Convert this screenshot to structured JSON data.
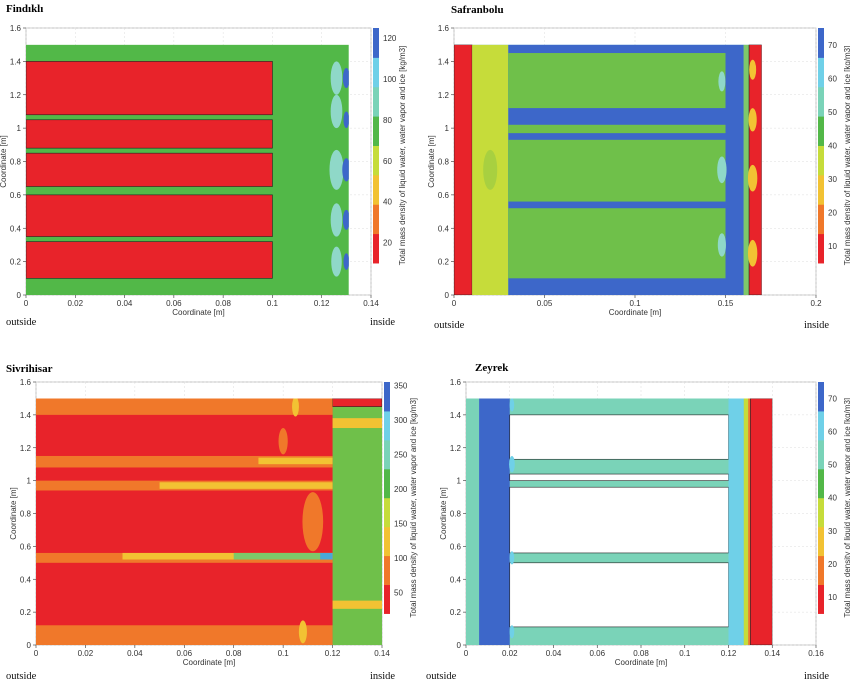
{
  "chart_data": [
    {
      "type": "heatmap",
      "title": "Findıklı",
      "xlabel": "Coordinate [m]",
      "ylabel": "Coordinate [m]",
      "xlim": [
        0,
        0.14
      ],
      "ylim": [
        0,
        1.6
      ],
      "xticks": [
        "0",
        "0.02",
        "0.04",
        "0.06",
        "0.08",
        "0.1",
        "0.12",
        "0.14"
      ],
      "yticks": [
        "0",
        "0.2",
        "0.4",
        "0.6",
        "0.8",
        "1",
        "1.2",
        "1.4",
        "1.6"
      ],
      "colorbar_label": "Total mass density of liquid water, water vapor and ice [kg/m3]",
      "colorbar_range": [
        10,
        125
      ],
      "colorbar_ticks": [
        "20",
        "40",
        "60",
        "80",
        "100",
        "120"
      ],
      "side_left": "outside",
      "side_right": "inside",
      "background_color": "#52b848",
      "regions": [
        {
          "x": [
            0,
            0.1
          ],
          "y": [
            0.1,
            0.32
          ],
          "color": "#e8232a"
        },
        {
          "x": [
            0,
            0.1
          ],
          "y": [
            0.35,
            0.6
          ],
          "color": "#e8232a"
        },
        {
          "x": [
            0,
            0.1
          ],
          "y": [
            0.65,
            0.85
          ],
          "color": "#e8232a"
        },
        {
          "x": [
            0,
            0.1
          ],
          "y": [
            0.88,
            1.05
          ],
          "color": "#e8232a"
        },
        {
          "x": [
            0,
            0.1
          ],
          "y": [
            1.08,
            1.4
          ],
          "color": "#e8232a"
        }
      ],
      "blobs": [
        {
          "x": 0.126,
          "y": 0.2,
          "r": 0.09,
          "color": "#8fd8c8"
        },
        {
          "x": 0.126,
          "y": 0.45,
          "r": 0.1,
          "color": "#8fd8c8"
        },
        {
          "x": 0.126,
          "y": 0.75,
          "r": 0.12,
          "color": "#8fd8c8"
        },
        {
          "x": 0.126,
          "y": 1.1,
          "r": 0.1,
          "color": "#8fd8c8"
        },
        {
          "x": 0.126,
          "y": 1.3,
          "r": 0.1,
          "color": "#8fd8c8"
        },
        {
          "x": 0.13,
          "y": 0.2,
          "r": 0.05,
          "color": "#3d67c9"
        },
        {
          "x": 0.13,
          "y": 0.45,
          "r": 0.06,
          "color": "#3d67c9"
        },
        {
          "x": 0.13,
          "y": 0.75,
          "r": 0.07,
          "color": "#3d67c9"
        },
        {
          "x": 0.13,
          "y": 1.05,
          "r": 0.05,
          "color": "#3d67c9"
        },
        {
          "x": 0.13,
          "y": 1.3,
          "r": 0.06,
          "color": "#3d67c9"
        }
      ],
      "extent": {
        "x": [
          0,
          0.131
        ],
        "y": [
          0,
          1.5
        ]
      }
    },
    {
      "type": "heatmap",
      "title": "Safranbolu",
      "xlabel": "Coordinate [m]",
      "ylabel": "Coordinate [m]",
      "xlim": [
        0,
        0.2
      ],
      "ylim": [
        0,
        1.6
      ],
      "xticks": [
        "0",
        "0.05",
        "0.1",
        "0.15",
        "0.2"
      ],
      "yticks": [
        "0",
        "0.2",
        "0.4",
        "0.6",
        "0.8",
        "1",
        "1.2",
        "1.4",
        "1.6"
      ],
      "colorbar_label": "Total mass density of liquid water, water vapor and ice [kg/m3]",
      "colorbar_range": [
        5,
        75
      ],
      "colorbar_ticks": [
        "10",
        "20",
        "30",
        "40",
        "50",
        "60",
        "70"
      ],
      "side_left": "outside",
      "side_right": "inside",
      "background_color": "#4aa8d8",
      "regions": [
        {
          "x": [
            0,
            0.01
          ],
          "y": [
            0,
            1.5
          ],
          "color": "#e8232a"
        },
        {
          "x": [
            0.01,
            0.03
          ],
          "y": [
            0,
            1.5
          ],
          "color": "#c6dc3a"
        },
        {
          "x": [
            0.03,
            0.16
          ],
          "y": [
            0,
            1.5
          ],
          "color": "#3d67c9"
        },
        {
          "x": [
            0.03,
            0.15
          ],
          "y": [
            0.1,
            0.52
          ],
          "color": "#6fc04a"
        },
        {
          "x": [
            0.03,
            0.15
          ],
          "y": [
            0.56,
            0.93
          ],
          "color": "#6fc04a"
        },
        {
          "x": [
            0.03,
            0.15
          ],
          "y": [
            0.97,
            1.02
          ],
          "color": "#6fc04a"
        },
        {
          "x": [
            0.03,
            0.15
          ],
          "y": [
            1.12,
            1.45
          ],
          "color": "#6fc04a"
        },
        {
          "x": [
            0.16,
            0.163
          ],
          "y": [
            0,
            1.5
          ],
          "color": "#7ec86a"
        },
        {
          "x": [
            0.163,
            0.17
          ],
          "y": [
            0,
            1.5
          ],
          "color": "#e8232a"
        }
      ],
      "blobs": [
        {
          "x": 0.165,
          "y": 1.35,
          "r": 0.06,
          "color": "#f2c233"
        },
        {
          "x": 0.165,
          "y": 1.05,
          "r": 0.07,
          "color": "#f2c233"
        },
        {
          "x": 0.165,
          "y": 0.7,
          "r": 0.08,
          "color": "#f2c233"
        },
        {
          "x": 0.165,
          "y": 0.25,
          "r": 0.08,
          "color": "#f2c233"
        },
        {
          "x": 0.02,
          "y": 0.75,
          "r": 0.12,
          "color": "#a8d040"
        },
        {
          "x": 0.148,
          "y": 0.3,
          "r": 0.07,
          "color": "#8fd8c8"
        },
        {
          "x": 0.148,
          "y": 0.75,
          "r": 0.08,
          "color": "#8fd8c8"
        },
        {
          "x": 0.148,
          "y": 1.28,
          "r": 0.06,
          "color": "#8fd8c8"
        }
      ],
      "extent": {
        "x": [
          0,
          0.17
        ],
        "y": [
          0,
          1.5
        ]
      }
    },
    {
      "type": "heatmap",
      "title": "Sivrihisar",
      "xlabel": "Coordinate [m]",
      "ylabel": "Coordinate [m]",
      "xlim": [
        0,
        0.14
      ],
      "ylim": [
        0,
        1.6
      ],
      "xticks": [
        "0",
        "0.02",
        "0.04",
        "0.06",
        "0.08",
        "0.1",
        "0.12",
        "0.14"
      ],
      "yticks": [
        "0",
        "0.2",
        "0.4",
        "0.6",
        "0.8",
        "1",
        "1.2",
        "1.4",
        "1.6"
      ],
      "colorbar_label": "Total mass density of liquid water, water vapor and ice [kg/m3]",
      "colorbar_range": [
        20,
        355
      ],
      "colorbar_ticks": [
        "50",
        "100",
        "150",
        "200",
        "250",
        "300",
        "350"
      ],
      "side_left": "outside",
      "side_right": "inside",
      "background_color": "#e8232a",
      "regions": [
        {
          "x": [
            0,
            0.12
          ],
          "y": [
            0,
            0.12
          ],
          "color": "#f0782a"
        },
        {
          "x": [
            0.12,
            0.14
          ],
          "y": [
            0,
            1.5
          ],
          "color": "#6fc04a"
        },
        {
          "x": [
            0.12,
            0.14
          ],
          "y": [
            0.22,
            0.27
          ],
          "color": "#f2c233"
        },
        {
          "x": [
            0.12,
            0.14
          ],
          "y": [
            1.32,
            1.38
          ],
          "color": "#f2c233"
        },
        {
          "x": [
            0.12,
            0.14
          ],
          "y": [
            1.45,
            1.5
          ],
          "color": "#e8232a"
        },
        {
          "x": [
            0,
            0.12
          ],
          "y": [
            1.4,
            1.5
          ],
          "color": "#f0782a"
        },
        {
          "x": [
            0,
            0.12
          ],
          "y": [
            1.08,
            1.15
          ],
          "color": "#f0782a"
        },
        {
          "x": [
            0,
            0.12
          ],
          "y": [
            0.94,
            1.0
          ],
          "color": "#f0782a"
        },
        {
          "x": [
            0,
            0.12
          ],
          "y": [
            0.5,
            0.56
          ],
          "color": "#f0782a"
        },
        {
          "x": [
            0.035,
            0.12
          ],
          "y": [
            0.52,
            0.56
          ],
          "color": "#f2c233"
        },
        {
          "x": [
            0.08,
            0.12
          ],
          "y": [
            0.52,
            0.56
          ],
          "color": "#7ec86a"
        },
        {
          "x": [
            0.115,
            0.12
          ],
          "y": [
            0.52,
            0.56
          ],
          "color": "#4aa8d8"
        },
        {
          "x": [
            0.05,
            0.12
          ],
          "y": [
            0.95,
            0.99
          ],
          "color": "#f2c233"
        },
        {
          "x": [
            0.09,
            0.12
          ],
          "y": [
            1.1,
            1.14
          ],
          "color": "#f2c233"
        }
      ],
      "blobs": [
        {
          "x": 0.105,
          "y": 1.45,
          "r": 0.06,
          "color": "#f2c233"
        },
        {
          "x": 0.1,
          "y": 1.24,
          "r": 0.08,
          "color": "#f0782a"
        },
        {
          "x": 0.108,
          "y": 0.08,
          "r": 0.07,
          "color": "#f2c233"
        },
        {
          "x": 0.112,
          "y": 0.75,
          "r": 0.18,
          "color": "#f0782a"
        }
      ],
      "extent": {
        "x": [
          0,
          0.14
        ],
        "y": [
          0,
          1.5
        ]
      }
    },
    {
      "type": "heatmap",
      "title": "Zeyrek",
      "xlabel": "Coordinate [m]",
      "ylabel": "Coordinate [m]",
      "xlim": [
        0,
        0.16
      ],
      "ylim": [
        0,
        1.6
      ],
      "xticks": [
        "0",
        "0.02",
        "0.04",
        "0.06",
        "0.08",
        "0.1",
        "0.12",
        "0.14",
        "0.16"
      ],
      "yticks": [
        "0",
        "0.2",
        "0.4",
        "0.6",
        "0.8",
        "1",
        "1.2",
        "1.4",
        "1.6"
      ],
      "colorbar_label": "Total mass density of liquid water, water vapor and ice [kg/m3]",
      "colorbar_range": [
        5,
        75
      ],
      "colorbar_ticks": [
        "10",
        "20",
        "30",
        "40",
        "50",
        "60",
        "70"
      ],
      "side_left": "outside",
      "side_right": "inside",
      "background_color": "#7ad3b8",
      "regions": [
        {
          "x": [
            0,
            0.006
          ],
          "y": [
            0,
            1.5
          ],
          "color": "#7ad3b8"
        },
        {
          "x": [
            0.006,
            0.02
          ],
          "y": [
            0,
            1.5
          ],
          "color": "#3d67c9"
        },
        {
          "x": [
            0.02,
            0.12
          ],
          "y": [
            0.11,
            0.5
          ],
          "color": "#ffffff"
        },
        {
          "x": [
            0.02,
            0.12
          ],
          "y": [
            0.56,
            0.96
          ],
          "color": "#ffffff"
        },
        {
          "x": [
            0.02,
            0.12
          ],
          "y": [
            1.0,
            1.04
          ],
          "color": "#ffffff"
        },
        {
          "x": [
            0.02,
            0.12
          ],
          "y": [
            1.13,
            1.4
          ],
          "color": "#ffffff"
        },
        {
          "x": [
            0.12,
            0.127
          ],
          "y": [
            0,
            1.5
          ],
          "color": "#6fd0e8"
        },
        {
          "x": [
            0.127,
            0.129
          ],
          "y": [
            0,
            1.5
          ],
          "color": "#c6dc3a"
        },
        {
          "x": [
            0.129,
            0.13
          ],
          "y": [
            0,
            1.5
          ],
          "color": "#f0782a"
        },
        {
          "x": [
            0.13,
            0.14
          ],
          "y": [
            0,
            1.5
          ],
          "color": "#e8232a"
        }
      ],
      "blobs": [
        {
          "x": 0.021,
          "y": 1.1,
          "r": 0.05,
          "color": "#6fd0e8"
        },
        {
          "x": 0.021,
          "y": 0.53,
          "r": 0.04,
          "color": "#6fd0e8"
        },
        {
          "x": 0.021,
          "y": 0.08,
          "r": 0.04,
          "color": "#6fd0e8"
        },
        {
          "x": 0.021,
          "y": 1.46,
          "r": 0.04,
          "color": "#6fd0e8"
        }
      ],
      "extent": {
        "x": [
          0,
          0.14
        ],
        "y": [
          0,
          1.5
        ]
      }
    }
  ],
  "colorbar_colors": [
    "#e8232a",
    "#f0782a",
    "#f2c233",
    "#c6dc3a",
    "#52b848",
    "#7ad3b8",
    "#6fd0e8",
    "#3d67c9"
  ]
}
